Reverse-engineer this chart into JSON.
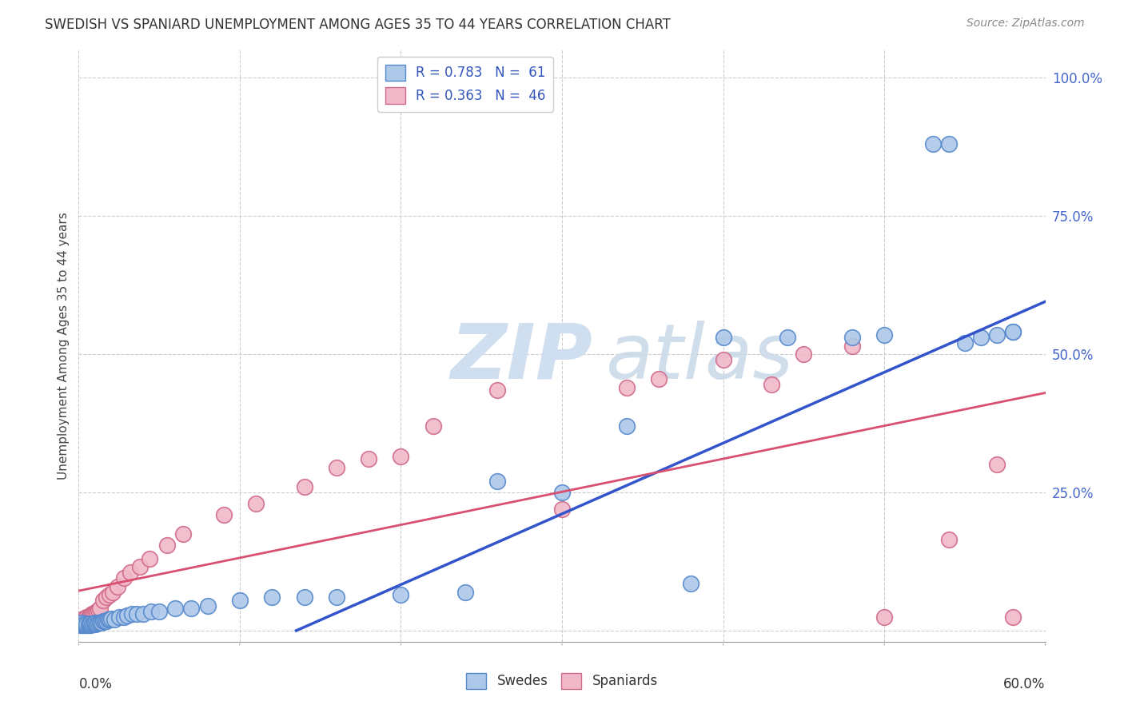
{
  "title": "SWEDISH VS SPANIARD UNEMPLOYMENT AMONG AGES 35 TO 44 YEARS CORRELATION CHART",
  "source": "Source: ZipAtlas.com",
  "ylabel": "Unemployment Among Ages 35 to 44 years",
  "xlim": [
    0.0,
    0.6
  ],
  "ylim": [
    -0.02,
    1.05
  ],
  "plot_ylim": [
    0.0,
    1.0
  ],
  "yticks": [
    0.0,
    0.25,
    0.5,
    0.75,
    1.0
  ],
  "ytick_labels": [
    "",
    "25.0%",
    "50.0%",
    "75.0%",
    "100.0%"
  ],
  "xtick_positions": [
    0.0,
    0.1,
    0.2,
    0.3,
    0.4,
    0.5,
    0.6
  ],
  "swedes_color": "#adc8e8",
  "swedes_edge_color": "#5588cc",
  "spaniards_color": "#f0b8c8",
  "spaniards_edge_color": "#d06888",
  "blue_line_color": "#3355cc",
  "pink_line_color": "#d85070",
  "watermark_color": "#d0dff0",
  "legend_text_color": "#3355bb",
  "swedes_x": [
    0.001,
    0.001,
    0.002,
    0.002,
    0.003,
    0.003,
    0.004,
    0.004,
    0.005,
    0.005,
    0.006,
    0.006,
    0.007,
    0.007,
    0.008,
    0.009,
    0.01,
    0.01,
    0.011,
    0.012,
    0.013,
    0.014,
    0.015,
    0.016,
    0.017,
    0.018,
    0.019,
    0.02,
    0.022,
    0.025,
    0.028,
    0.03,
    0.033,
    0.036,
    0.04,
    0.045,
    0.05,
    0.06,
    0.07,
    0.08,
    0.1,
    0.12,
    0.14,
    0.16,
    0.2,
    0.24,
    0.26,
    0.3,
    0.34,
    0.38,
    0.4,
    0.44,
    0.48,
    0.5,
    0.53,
    0.54,
    0.55,
    0.56,
    0.57,
    0.58,
    0.58
  ],
  "swedes_y": [
    0.01,
    0.013,
    0.01,
    0.015,
    0.01,
    0.012,
    0.01,
    0.013,
    0.01,
    0.012,
    0.01,
    0.012,
    0.01,
    0.013,
    0.012,
    0.012,
    0.012,
    0.015,
    0.013,
    0.015,
    0.015,
    0.015,
    0.018,
    0.018,
    0.018,
    0.02,
    0.02,
    0.022,
    0.02,
    0.025,
    0.025,
    0.028,
    0.03,
    0.03,
    0.03,
    0.035,
    0.035,
    0.04,
    0.04,
    0.045,
    0.055,
    0.06,
    0.06,
    0.06,
    0.065,
    0.07,
    0.27,
    0.25,
    0.37,
    0.085,
    0.53,
    0.53,
    0.53,
    0.535,
    0.88,
    0.88,
    0.52,
    0.53,
    0.535,
    0.54,
    0.54
  ],
  "spaniards_x": [
    0.001,
    0.001,
    0.002,
    0.002,
    0.003,
    0.003,
    0.004,
    0.005,
    0.006,
    0.007,
    0.008,
    0.009,
    0.01,
    0.011,
    0.012,
    0.013,
    0.015,
    0.017,
    0.019,
    0.021,
    0.024,
    0.028,
    0.032,
    0.038,
    0.044,
    0.055,
    0.065,
    0.09,
    0.11,
    0.14,
    0.16,
    0.18,
    0.2,
    0.22,
    0.26,
    0.3,
    0.34,
    0.36,
    0.4,
    0.43,
    0.45,
    0.48,
    0.5,
    0.54,
    0.57,
    0.58
  ],
  "spaniards_y": [
    0.012,
    0.015,
    0.015,
    0.018,
    0.018,
    0.022,
    0.02,
    0.025,
    0.025,
    0.028,
    0.03,
    0.03,
    0.033,
    0.035,
    0.038,
    0.04,
    0.055,
    0.06,
    0.065,
    0.07,
    0.08,
    0.095,
    0.105,
    0.115,
    0.13,
    0.155,
    0.175,
    0.21,
    0.23,
    0.26,
    0.295,
    0.31,
    0.315,
    0.37,
    0.435,
    0.22,
    0.44,
    0.455,
    0.49,
    0.445,
    0.5,
    0.515,
    0.025,
    0.165,
    0.3,
    0.025
  ],
  "blue_line_x_start": 0.135,
  "blue_line_x_end": 0.6,
  "blue_line_y_start": 0.0,
  "blue_line_y_end": 0.595,
  "pink_line_x_start": 0.0,
  "pink_line_x_end": 0.6,
  "pink_line_y_start": 0.072,
  "pink_line_y_end": 0.43
}
